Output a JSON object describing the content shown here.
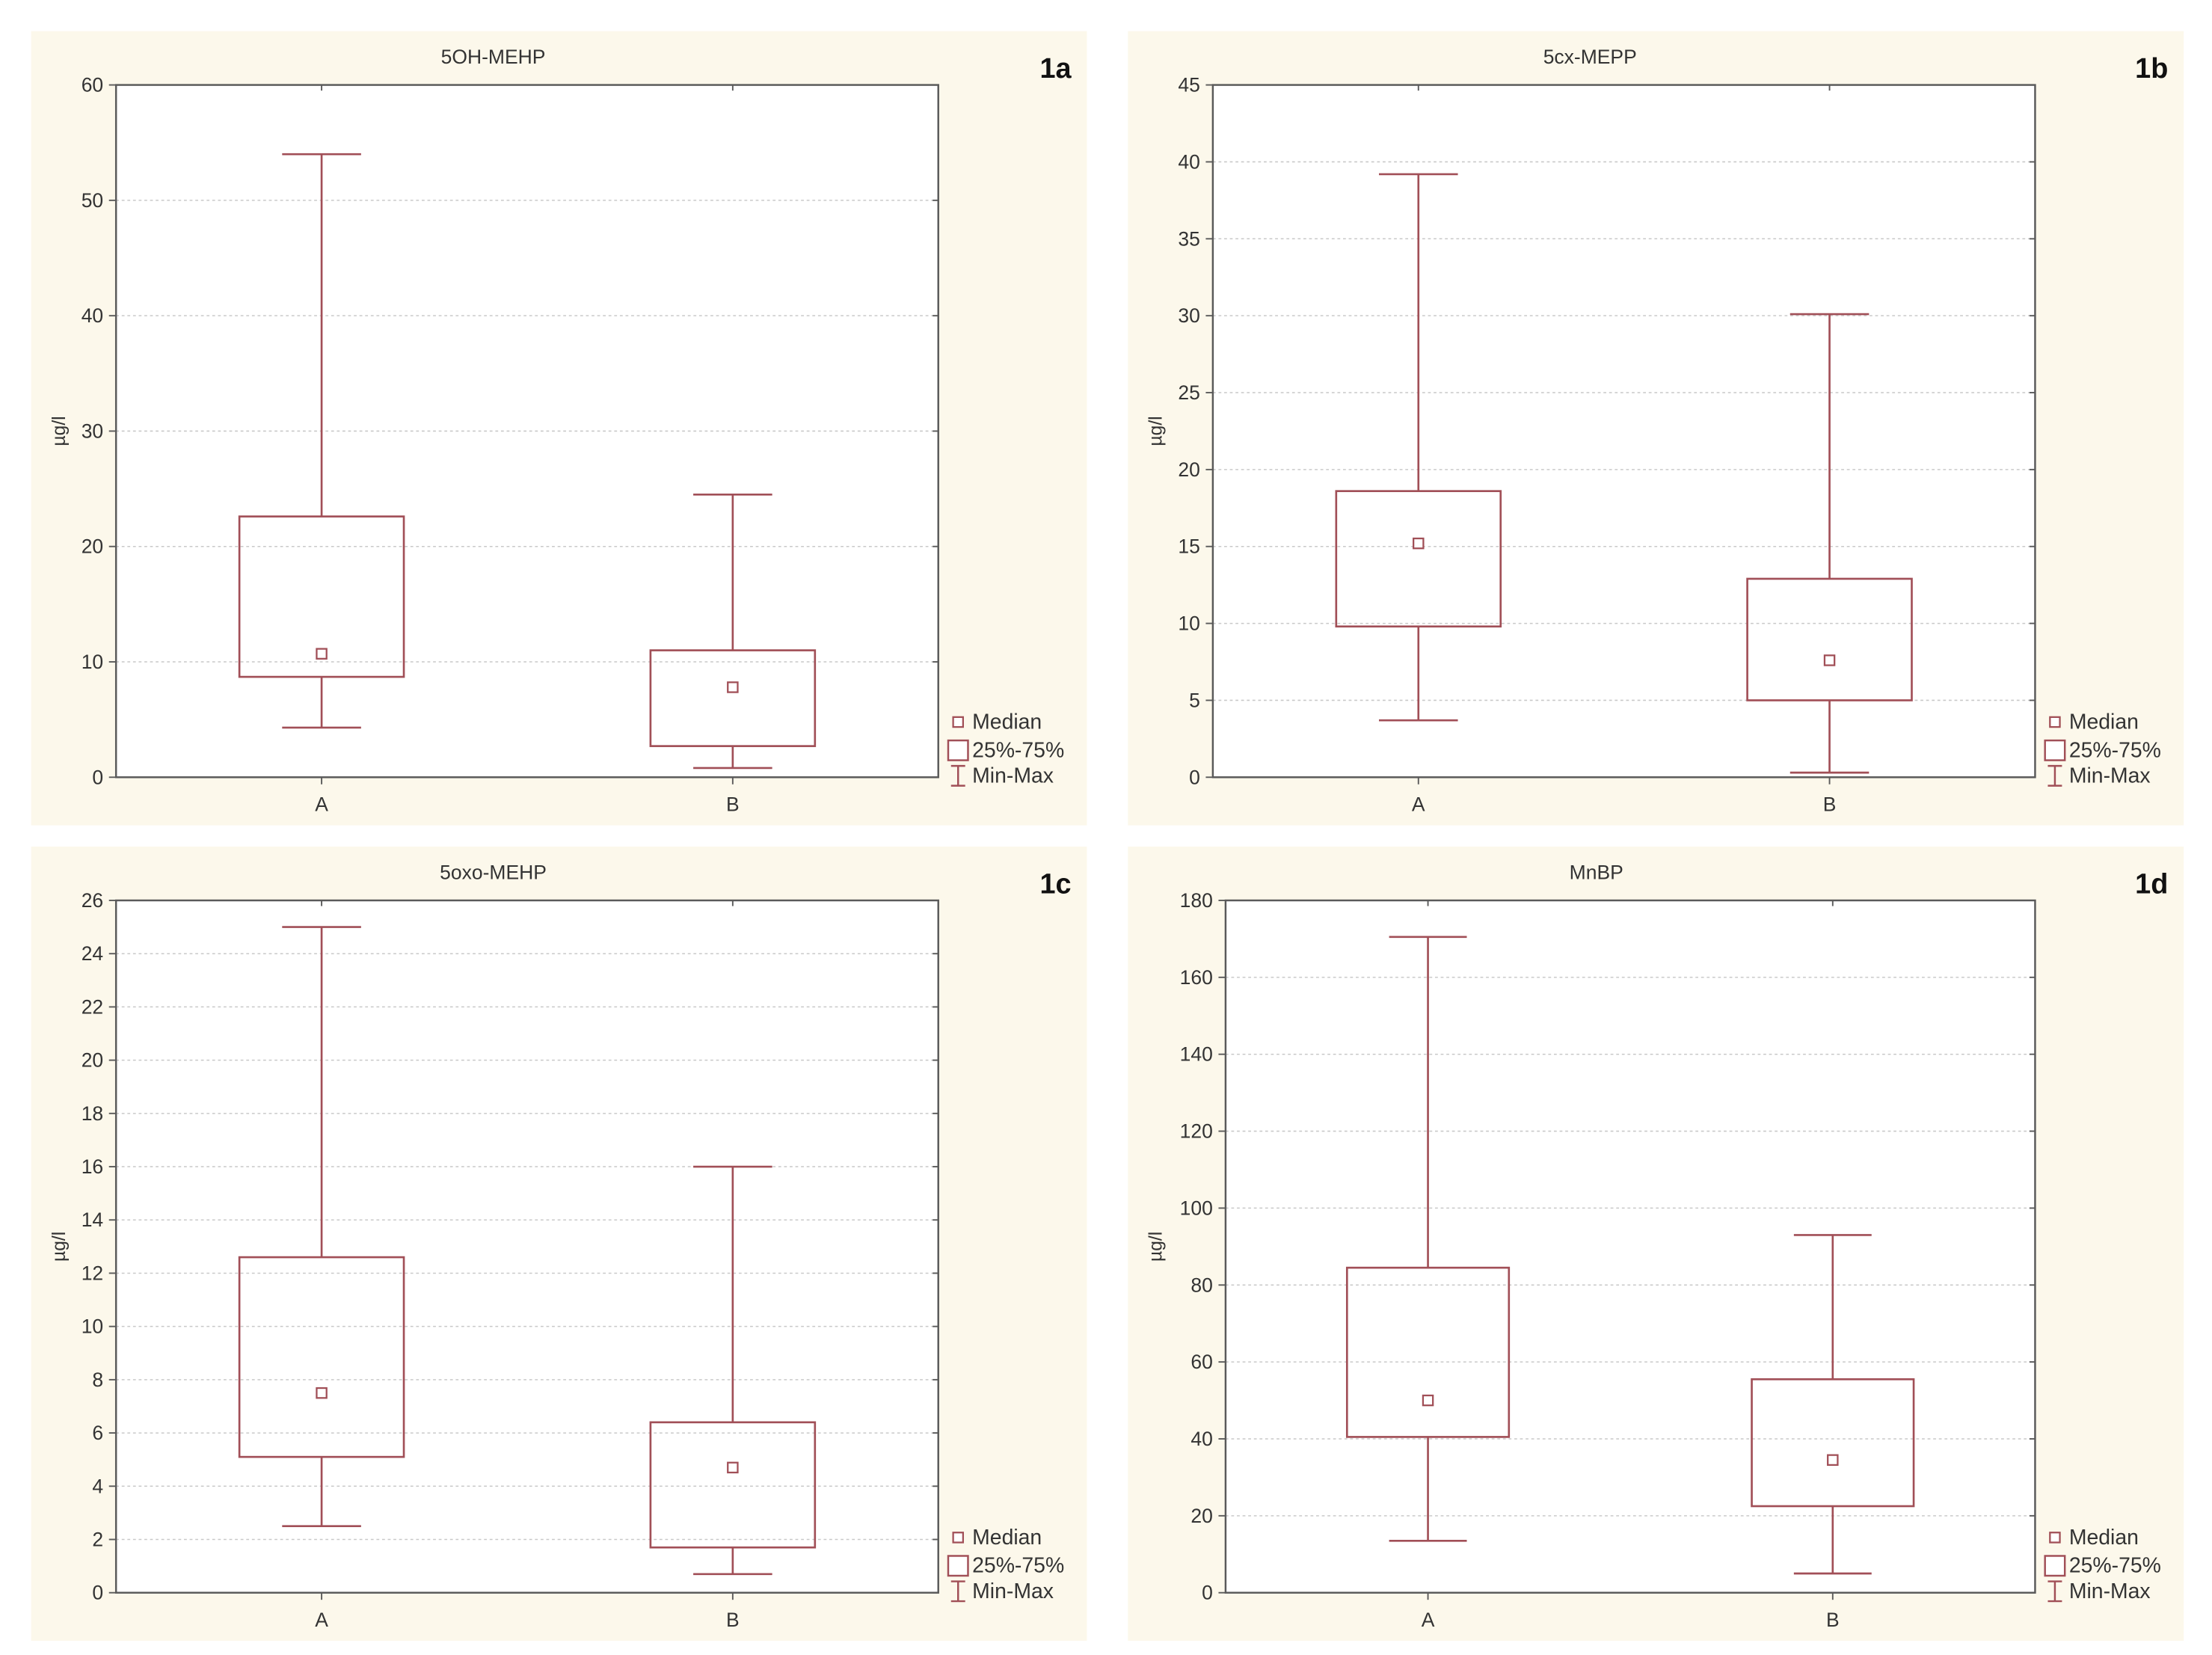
{
  "colors": {
    "page_background": "#ffffff",
    "panel_background": "#fcf8eb",
    "plot_background": "#ffffff",
    "frame": "#5a5a5a",
    "grid": "#c9c9c9",
    "box": "#a14f57",
    "text": "#333333"
  },
  "chart_data": [
    {
      "type": "box",
      "panel_label": "1a",
      "title": "5OH-MEHP",
      "xlabel": "",
      "ylabel": "µg/l",
      "ylim": [
        0,
        60
      ],
      "yticks": [
        0,
        10,
        20,
        30,
        40,
        50,
        60
      ],
      "grid": true,
      "categories": [
        "A",
        "B"
      ],
      "boxes": [
        {
          "min": 4.3,
          "q1": 8.7,
          "median": 10.7,
          "q3": 22.6,
          "max": 54.0
        },
        {
          "min": 0.8,
          "q1": 2.7,
          "median": 7.8,
          "q3": 11.0,
          "max": 24.5
        }
      ],
      "legend": {
        "position": "bottom-right",
        "entries": [
          "Median",
          "25%-75%",
          "Min-Max"
        ]
      }
    },
    {
      "type": "box",
      "panel_label": "1b",
      "title": "5cx-MEPP",
      "xlabel": "",
      "ylabel": "µg/l",
      "ylim": [
        0,
        45
      ],
      "yticks": [
        0,
        5,
        10,
        15,
        20,
        25,
        30,
        35,
        40,
        45
      ],
      "grid": true,
      "categories": [
        "A",
        "B"
      ],
      "boxes": [
        {
          "min": 3.7,
          "q1": 9.8,
          "median": 15.2,
          "q3": 18.6,
          "max": 39.2
        },
        {
          "min": 0.3,
          "q1": 5.0,
          "median": 7.6,
          "q3": 12.9,
          "max": 30.1
        }
      ],
      "legend": {
        "position": "bottom-right",
        "entries": [
          "Median",
          "25%-75%",
          "Min-Max"
        ]
      }
    },
    {
      "type": "box",
      "panel_label": "1c",
      "title": "5oxo-MEHP",
      "xlabel": "",
      "ylabel": "µg/l",
      "ylim": [
        0,
        26
      ],
      "yticks": [
        0,
        2,
        4,
        6,
        8,
        10,
        12,
        14,
        16,
        18,
        20,
        22,
        24,
        26
      ],
      "grid": true,
      "categories": [
        "A",
        "B"
      ],
      "boxes": [
        {
          "min": 2.5,
          "q1": 5.1,
          "median": 7.5,
          "q3": 12.6,
          "max": 25.0
        },
        {
          "min": 0.7,
          "q1": 1.7,
          "median": 4.7,
          "q3": 6.4,
          "max": 16.0
        }
      ],
      "legend": {
        "position": "bottom-right",
        "entries": [
          "Median",
          "25%-75%",
          "Min-Max"
        ]
      }
    },
    {
      "type": "box",
      "panel_label": "1d",
      "title": "MnBP",
      "xlabel": "",
      "ylabel": "µg/l",
      "ylim": [
        0,
        180
      ],
      "yticks": [
        0,
        20,
        40,
        60,
        80,
        100,
        120,
        140,
        160,
        180
      ],
      "grid": true,
      "categories": [
        "A",
        "B"
      ],
      "boxes": [
        {
          "min": 13.5,
          "q1": 40.5,
          "median": 50.0,
          "q3": 84.5,
          "max": 170.5
        },
        {
          "min": 5.0,
          "q1": 22.5,
          "median": 34.5,
          "q3": 55.5,
          "max": 93.0
        }
      ],
      "legend": {
        "position": "bottom-right",
        "entries": [
          "Median",
          "25%-75%",
          "Min-Max"
        ]
      }
    }
  ]
}
